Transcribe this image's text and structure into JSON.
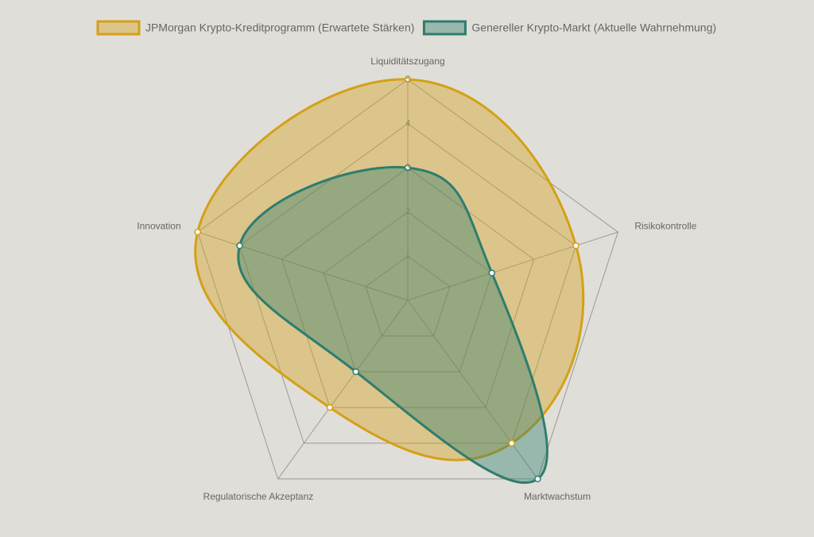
{
  "chart_data": {
    "type": "radar",
    "categories": [
      "Liquiditätszugang",
      "Risikokontrolle",
      "Marktwachstum",
      "Regulatorische Akzeptanz",
      "Innovation"
    ],
    "series": [
      {
        "name": "JPMorgan Krypto-Kreditprogramm (Erwartete Stärken)",
        "color": "#d4a017",
        "values": [
          5,
          4,
          4,
          3,
          5
        ]
      },
      {
        "name": "Genereller Krypto-Markt (Aktuelle Wahrnehmung)",
        "color": "#2e7d6e",
        "values": [
          3,
          2,
          5,
          2,
          4
        ]
      }
    ],
    "rlim": [
      0,
      5
    ],
    "rticks": [
      1,
      2,
      3,
      4,
      5
    ],
    "legend": "top"
  }
}
